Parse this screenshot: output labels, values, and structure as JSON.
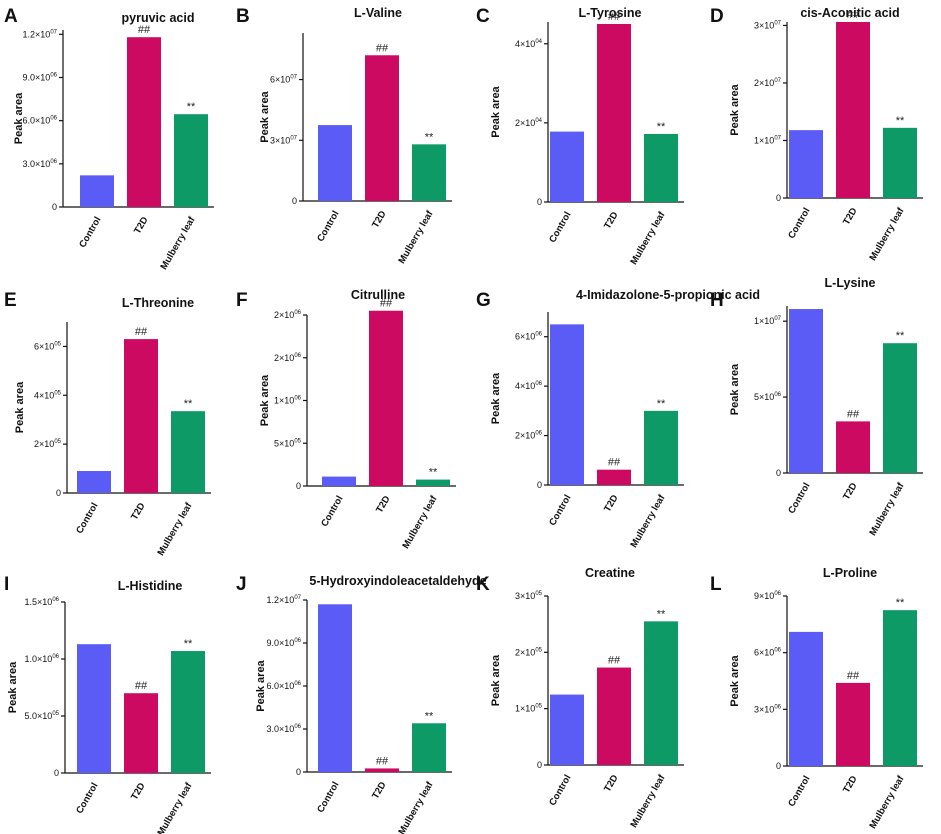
{
  "colors": {
    "Control": "#5b5cf5",
    "T2D": "#cc0a62",
    "Mulberry leaf": "#0e9a66"
  },
  "chart_data": [
    {
      "id": "pyruvic",
      "letter": "A",
      "type": "bar",
      "title": "pyruvic acid",
      "ylabel": "Peak area",
      "categories": [
        "Control",
        "T2D",
        "Mulberry leaf"
      ],
      "values": [
        2200000,
        11800000,
        6450000
      ],
      "ylim": [
        0,
        12300000
      ],
      "yticks": [
        {
          "v": 0,
          "t": "0"
        },
        {
          "v": 3000000,
          "t": "3.0×10",
          "e": "06"
        },
        {
          "v": 6000000,
          "t": "6.0×10",
          "e": "06"
        },
        {
          "v": 9000000,
          "t": "9.0×10",
          "e": "06"
        },
        {
          "v": 12000000,
          "t": "1.2×10",
          "e": "07"
        }
      ],
      "marks": [
        "",
        "##",
        "**"
      ]
    },
    {
      "id": "valine",
      "letter": "B",
      "type": "bar",
      "title": "L-Valine",
      "ylabel": "Peak area",
      "categories": [
        "Control",
        "T2D",
        "Mulberry leaf"
      ],
      "values": [
        37500000,
        72000000,
        28000000
      ],
      "ylim": [
        0,
        83000000
      ],
      "yticks": [
        {
          "v": 0,
          "t": "0"
        },
        {
          "v": 30000000,
          "t": "3×10",
          "e": "07"
        },
        {
          "v": 60000000,
          "t": "6×10",
          "e": "07"
        }
      ],
      "marks": [
        "",
        "##",
        "**"
      ]
    },
    {
      "id": "tyrosine",
      "letter": "C",
      "type": "bar",
      "title": "L-Tyrosine",
      "ylabel": "Peak area",
      "categories": [
        "Control",
        "T2D",
        "Mulberry leaf"
      ],
      "values": [
        17800,
        45000,
        17200
      ],
      "ylim": [
        0,
        45500
      ],
      "yticks": [
        {
          "v": 0,
          "t": "0"
        },
        {
          "v": 20000,
          "t": "2×10",
          "e": "04"
        },
        {
          "v": 40000,
          "t": "4×10",
          "e": "04"
        }
      ],
      "marks": [
        "",
        "##",
        "**"
      ]
    },
    {
      "id": "aconitic",
      "letter": "D",
      "type": "bar",
      "title": "cis-Aconitic acid",
      "ylabel": "Peak area",
      "categories": [
        "Control",
        "T2D",
        "Mulberry leaf"
      ],
      "values": [
        11800000,
        30600000,
        12200000
      ],
      "ylim": [
        0,
        30600000
      ],
      "yticks": [
        {
          "v": 0,
          "t": "0"
        },
        {
          "v": 10000000,
          "t": "1×10",
          "e": "07"
        },
        {
          "v": 20000000,
          "t": "2×10",
          "e": "07"
        },
        {
          "v": 30000000,
          "t": "3×10",
          "e": "07"
        }
      ],
      "marks": [
        "",
        "##",
        "**"
      ]
    },
    {
      "id": "threonine",
      "letter": "E",
      "type": "bar",
      "title": "L-Threonine",
      "ylabel": "Peak area",
      "categories": [
        "Control",
        "T2D",
        "Mulberry leaf"
      ],
      "values": [
        90000,
        630000,
        335000
      ],
      "ylim": [
        0,
        700000
      ],
      "yticks": [
        {
          "v": 0,
          "t": "0"
        },
        {
          "v": 200000,
          "t": "2×10",
          "e": "05"
        },
        {
          "v": 400000,
          "t": "4×10",
          "e": "05"
        },
        {
          "v": 600000,
          "t": "6×10",
          "e": "05"
        }
      ],
      "marks": [
        "",
        "##",
        "**"
      ]
    },
    {
      "id": "citrulline",
      "letter": "F",
      "type": "bar",
      "title": "Citrulline",
      "ylabel": "Peak area",
      "categories": [
        "Control",
        "T2D",
        "Mulberry leaf"
      ],
      "values": [
        110000,
        2050000,
        75000
      ],
      "ylim": [
        0,
        2000000
      ],
      "yticks": [
        {
          "v": 0,
          "t": "0"
        },
        {
          "v": 500000,
          "t": "5×10",
          "e": "05"
        },
        {
          "v": 1000000,
          "t": "1×10",
          "e": "06"
        },
        {
          "v": 1500000,
          "t": "2×10",
          "e": "06"
        },
        {
          "v": 2000000,
          "t": "2×10",
          "e": "06"
        }
      ],
      "marks": [
        "",
        "##",
        "**"
      ]
    },
    {
      "id": "imidazolone",
      "letter": "G",
      "type": "bar",
      "title": "4-Imidazolone-5-propionic acid",
      "ylabel": "Peak area",
      "categories": [
        "Control",
        "T2D",
        "Mulberry leaf"
      ],
      "values": [
        6500000,
        620000,
        3000000
      ],
      "ylim": [
        0,
        7000000
      ],
      "yticks": [
        {
          "v": 0,
          "t": "0"
        },
        {
          "v": 2000000,
          "t": "2×10",
          "e": "06"
        },
        {
          "v": 4000000,
          "t": "4×10",
          "e": "06"
        },
        {
          "v": 6000000,
          "t": "6×10",
          "e": "06"
        }
      ],
      "marks": [
        "",
        "##",
        "**"
      ]
    },
    {
      "id": "lysine",
      "letter": "H",
      "type": "bar",
      "title": "L-Lysine",
      "ylabel": "Peak area",
      "categories": [
        "Control",
        "T2D",
        "Mulberry leaf"
      ],
      "values": [
        10800000,
        3400000,
        8550000
      ],
      "ylim": [
        0,
        11000000
      ],
      "yticks": [
        {
          "v": 0,
          "t": "0"
        },
        {
          "v": 5000000,
          "t": "5×10",
          "e": "06"
        },
        {
          "v": 10000000,
          "t": "1×10",
          "e": "07"
        }
      ],
      "marks": [
        "",
        "##",
        "**"
      ]
    },
    {
      "id": "histidine",
      "letter": "I",
      "type": "bar",
      "title": "L-Histidine",
      "ylabel": "Peak area",
      "categories": [
        "Control",
        "T2D",
        "Mulberry leaf"
      ],
      "values": [
        1130000,
        700000,
        1070000
      ],
      "ylim": [
        0,
        1500000
      ],
      "yticks": [
        {
          "v": 0,
          "t": "0"
        },
        {
          "v": 500000,
          "t": "5.0×10",
          "e": "05"
        },
        {
          "v": 1000000,
          "t": "1.0×10",
          "e": "06"
        },
        {
          "v": 1500000,
          "t": "1.5×10",
          "e": "06"
        }
      ],
      "marks": [
        "",
        "##",
        "**"
      ]
    },
    {
      "id": "hydroxyindole",
      "letter": "J",
      "type": "bar",
      "title": "5-Hydroxyindoleacetaldehyde",
      "ylabel": "Peak area",
      "categories": [
        "Control",
        "T2D",
        "Mulberry leaf"
      ],
      "values": [
        11700000,
        250000,
        3400000
      ],
      "ylim": [
        0,
        12000000
      ],
      "yticks": [
        {
          "v": 0,
          "t": "0"
        },
        {
          "v": 3000000,
          "t": "3.0×10",
          "e": "06"
        },
        {
          "v": 6000000,
          "t": "6.0×10",
          "e": "06"
        },
        {
          "v": 9000000,
          "t": "9.0×10",
          "e": "06"
        },
        {
          "v": 12000000,
          "t": "1.2×10",
          "e": "07"
        }
      ],
      "marks": [
        "",
        "##",
        "**"
      ]
    },
    {
      "id": "creatine",
      "letter": "K",
      "type": "bar",
      "title": "Creatine",
      "ylabel": "Peak area",
      "categories": [
        "Control",
        "T2D",
        "Mulberry leaf"
      ],
      "values": [
        125000,
        173000,
        255000
      ],
      "ylim": [
        0,
        300000
      ],
      "yticks": [
        {
          "v": 0,
          "t": "0"
        },
        {
          "v": 100000,
          "t": "1×10",
          "e": "05"
        },
        {
          "v": 200000,
          "t": "2×10",
          "e": "05"
        },
        {
          "v": 300000,
          "t": "3×10",
          "e": "05"
        }
      ],
      "marks": [
        "",
        "##",
        "**"
      ]
    },
    {
      "id": "proline",
      "letter": "L",
      "type": "bar",
      "title": "L-Proline",
      "ylabel": "Peak area",
      "categories": [
        "Control",
        "T2D",
        "Mulberry leaf"
      ],
      "values": [
        7100000,
        4400000,
        8250000
      ],
      "ylim": [
        0,
        9000000
      ],
      "yticks": [
        {
          "v": 0,
          "t": "0"
        },
        {
          "v": 3000000,
          "t": "3×10",
          "e": "06"
        },
        {
          "v": 6000000,
          "t": "6×10",
          "e": "06"
        },
        {
          "v": 9000000,
          "t": "9×10",
          "e": "06"
        }
      ],
      "marks": [
        "",
        "##",
        "**"
      ]
    }
  ]
}
